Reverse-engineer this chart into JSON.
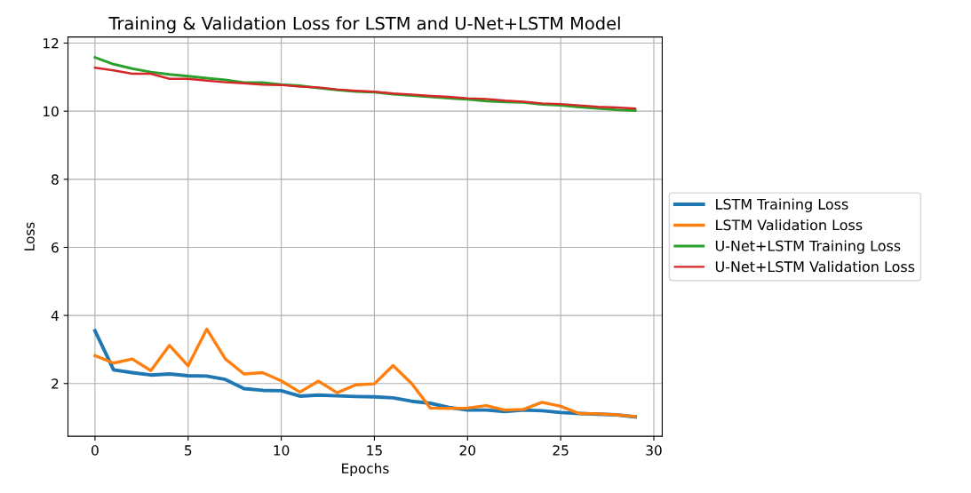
{
  "chart_data": {
    "type": "line",
    "title": "Training & Validation Loss for LSTM and U-Net+LSTM Model",
    "xlabel": "Epochs",
    "ylabel": "Loss",
    "x": [
      0,
      1,
      2,
      3,
      4,
      5,
      6,
      7,
      8,
      9,
      10,
      11,
      12,
      13,
      14,
      15,
      16,
      17,
      18,
      19,
      20,
      21,
      22,
      23,
      24,
      25,
      26,
      27,
      28,
      29
    ],
    "series": [
      {
        "name": "LSTM Training Loss",
        "color": "#1f77b4",
        "values": [
          3.55,
          2.4,
          2.32,
          2.25,
          2.28,
          2.23,
          2.22,
          2.12,
          1.85,
          1.8,
          1.79,
          1.63,
          1.66,
          1.64,
          1.62,
          1.61,
          1.58,
          1.48,
          1.42,
          1.3,
          1.22,
          1.22,
          1.18,
          1.22,
          1.2,
          1.15,
          1.12,
          1.1,
          1.08,
          1.02
        ]
      },
      {
        "name": "LSTM Validation Loss",
        "color": "#ff7f0e",
        "values": [
          2.82,
          2.6,
          2.72,
          2.38,
          3.12,
          2.52,
          3.6,
          2.72,
          2.28,
          2.32,
          2.08,
          1.75,
          2.07,
          1.73,
          1.96,
          1.99,
          2.53,
          2.0,
          1.28,
          1.27,
          1.28,
          1.35,
          1.22,
          1.24,
          1.45,
          1.33,
          1.12,
          1.11,
          1.08,
          1.03
        ]
      },
      {
        "name": "U-Net+LSTM Training Loss",
        "color": "#2ca02c",
        "values": [
          11.58,
          11.38,
          11.25,
          11.15,
          11.08,
          11.03,
          10.97,
          10.92,
          10.84,
          10.84,
          10.78,
          10.75,
          10.68,
          10.62,
          10.58,
          10.56,
          10.5,
          10.46,
          10.42,
          10.38,
          10.35,
          10.3,
          10.27,
          10.26,
          10.2,
          10.17,
          10.12,
          10.08,
          10.04,
          10.02
        ]
      },
      {
        "name": "U-Net+LSTM Validation Loss",
        "color": "#d62728",
        "values": [
          11.28,
          11.2,
          11.1,
          11.1,
          10.95,
          10.95,
          10.9,
          10.85,
          10.82,
          10.78,
          10.77,
          10.72,
          10.7,
          10.64,
          10.6,
          10.57,
          10.52,
          10.49,
          10.45,
          10.42,
          10.38,
          10.36,
          10.31,
          10.28,
          10.23,
          10.21,
          10.17,
          10.13,
          10.11,
          10.08
        ]
      }
    ],
    "xlim": [
      -1.45,
      30.45
    ],
    "ylim": [
      0.45,
      12.18
    ],
    "xticks": [
      0,
      5,
      10,
      15,
      20,
      25,
      30
    ],
    "yticks": [
      2,
      4,
      6,
      8,
      10,
      12
    ],
    "grid": true,
    "legend": "right",
    "marker": "none",
    "line_style": "solid"
  }
}
